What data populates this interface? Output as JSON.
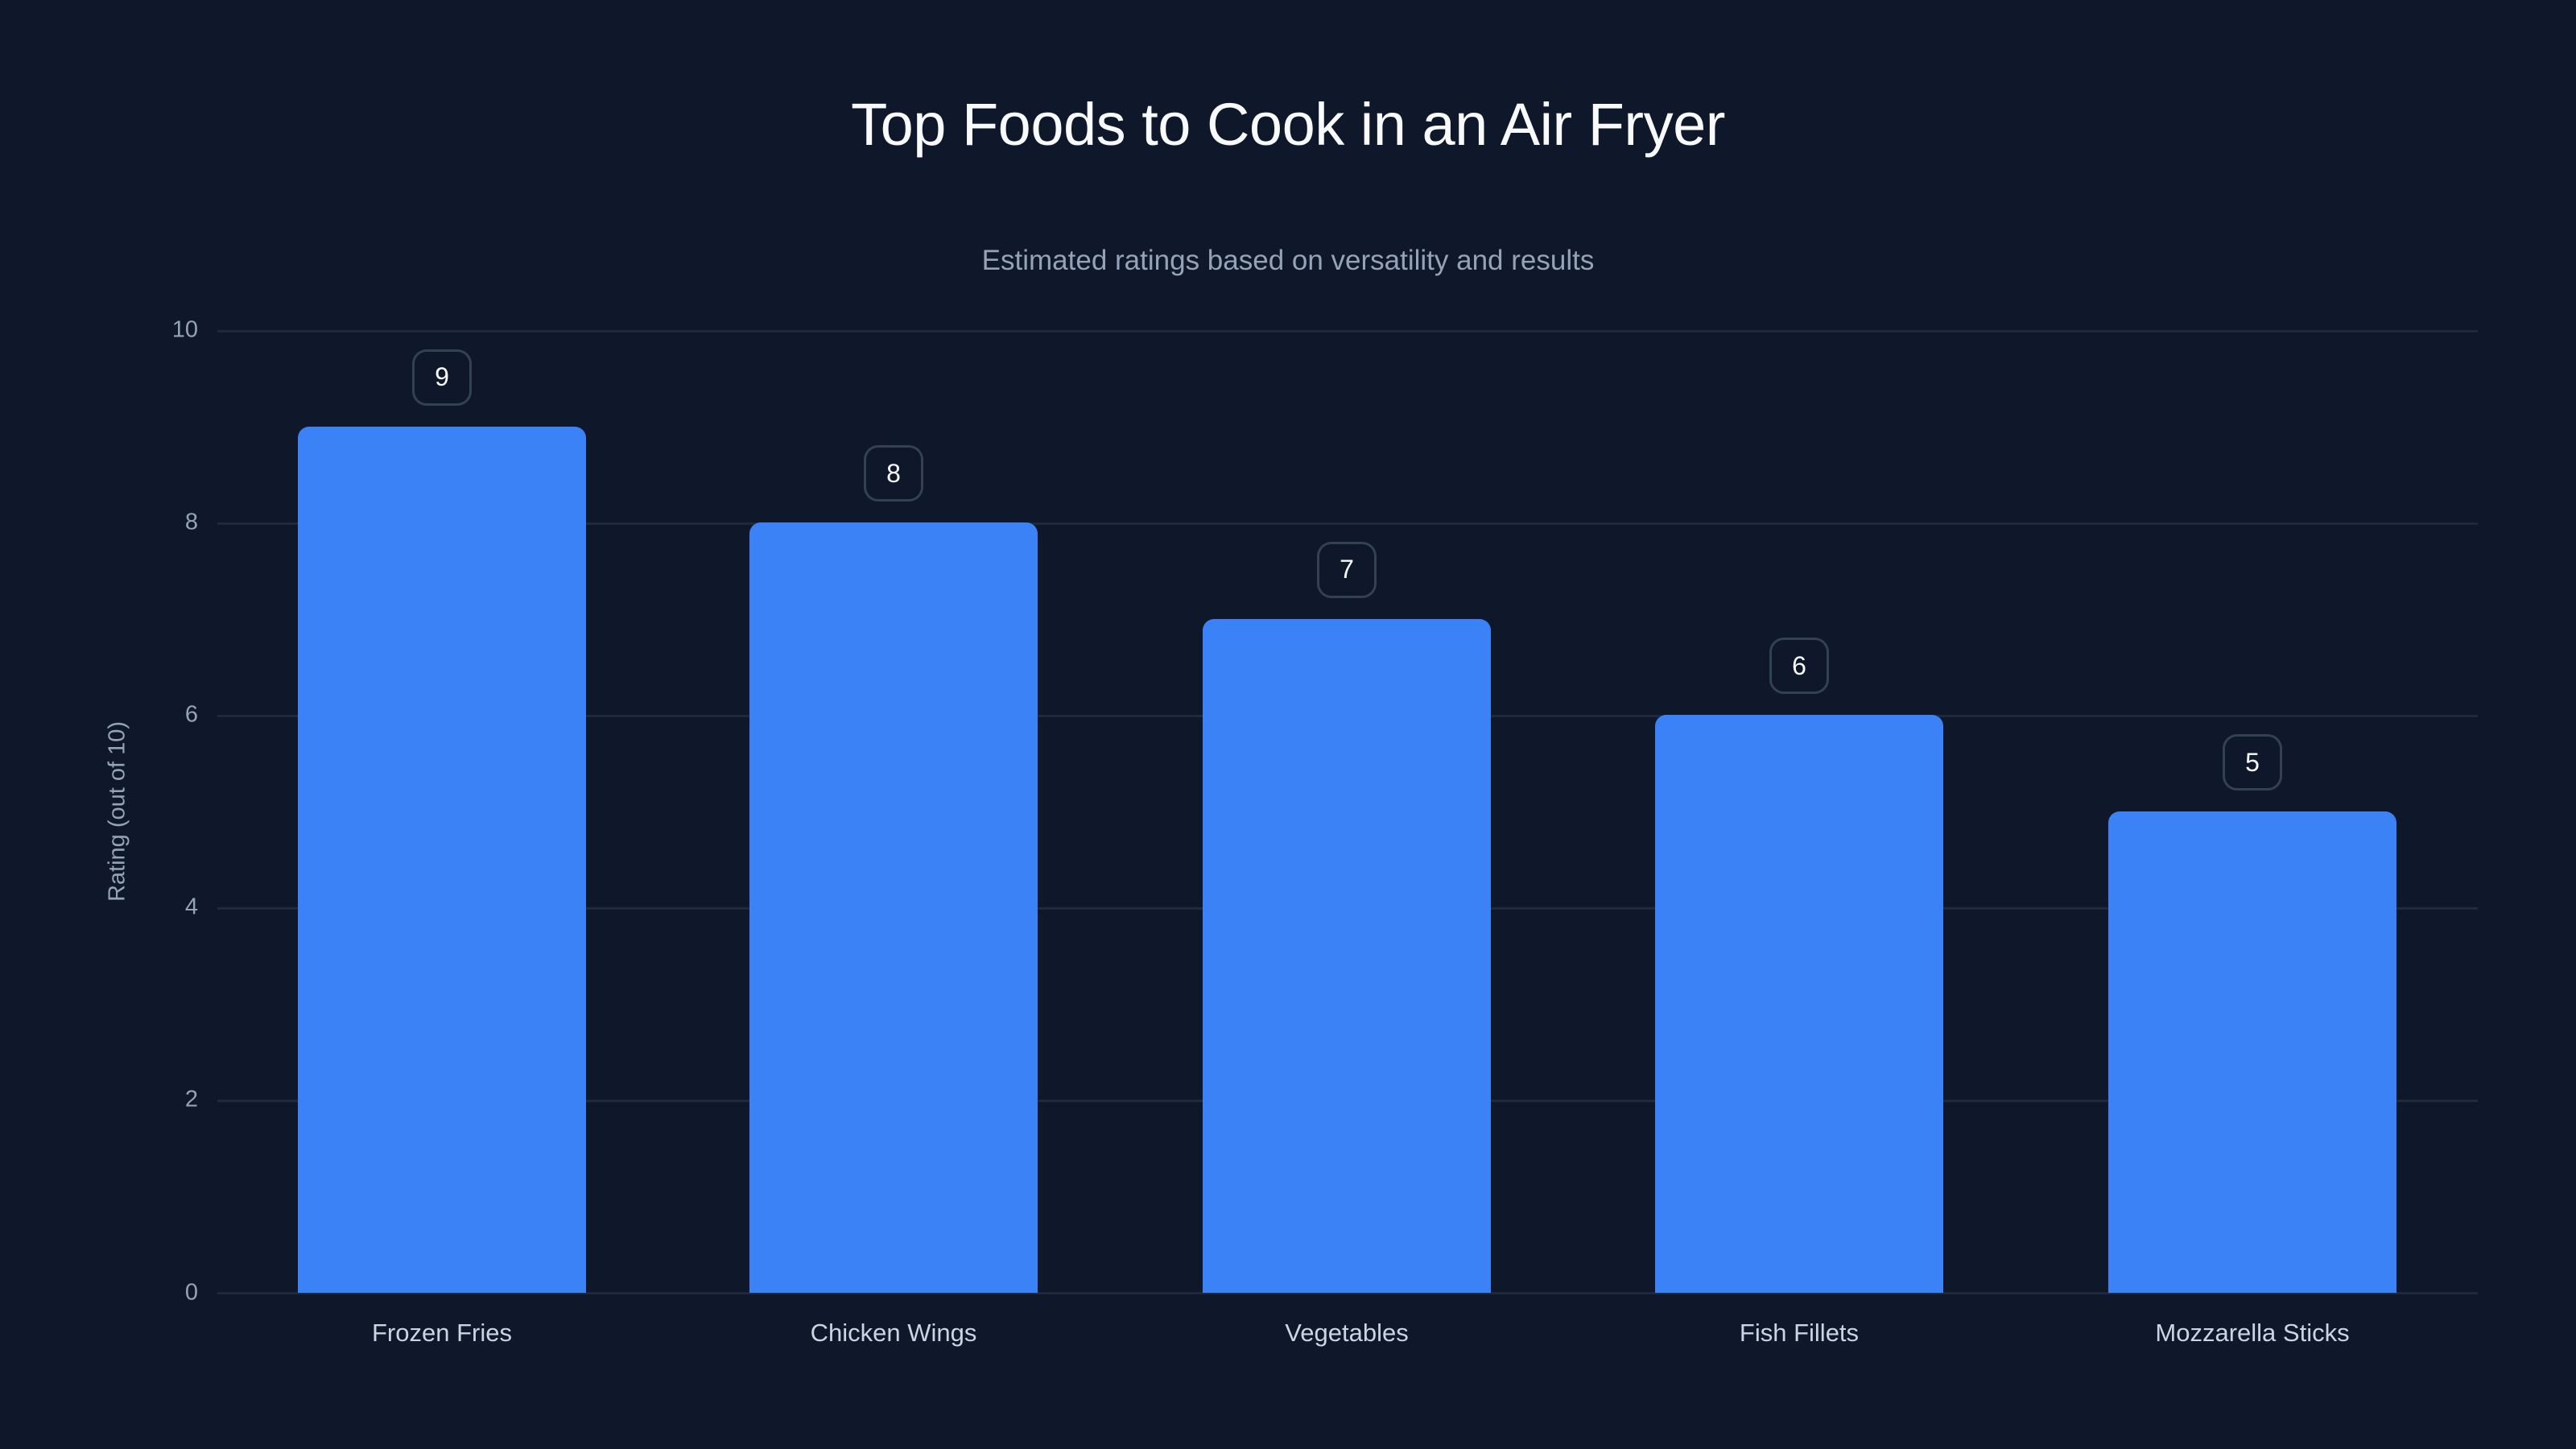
{
  "chart_data": {
    "type": "bar",
    "title": "Top Foods to Cook in an Air Fryer",
    "subtitle": "Estimated ratings based on versatility and results",
    "xlabel": "",
    "ylabel": "Rating (out of 10)",
    "categories": [
      "Frozen Fries",
      "Chicken Wings",
      "Vegetables",
      "Fish Fillets",
      "Mozzarella Sticks"
    ],
    "values": [
      9,
      8,
      7,
      6,
      5
    ],
    "ylim": [
      0,
      10
    ],
    "yticks": [
      "0",
      "2",
      "4",
      "6",
      "8",
      "10"
    ],
    "grid": true,
    "legend": null,
    "data_labels": [
      "9",
      "8",
      "7",
      "6",
      "5"
    ],
    "colors": {
      "bar": "#3b82f6",
      "background": "#0f172a",
      "grid": "#1e293b"
    }
  }
}
